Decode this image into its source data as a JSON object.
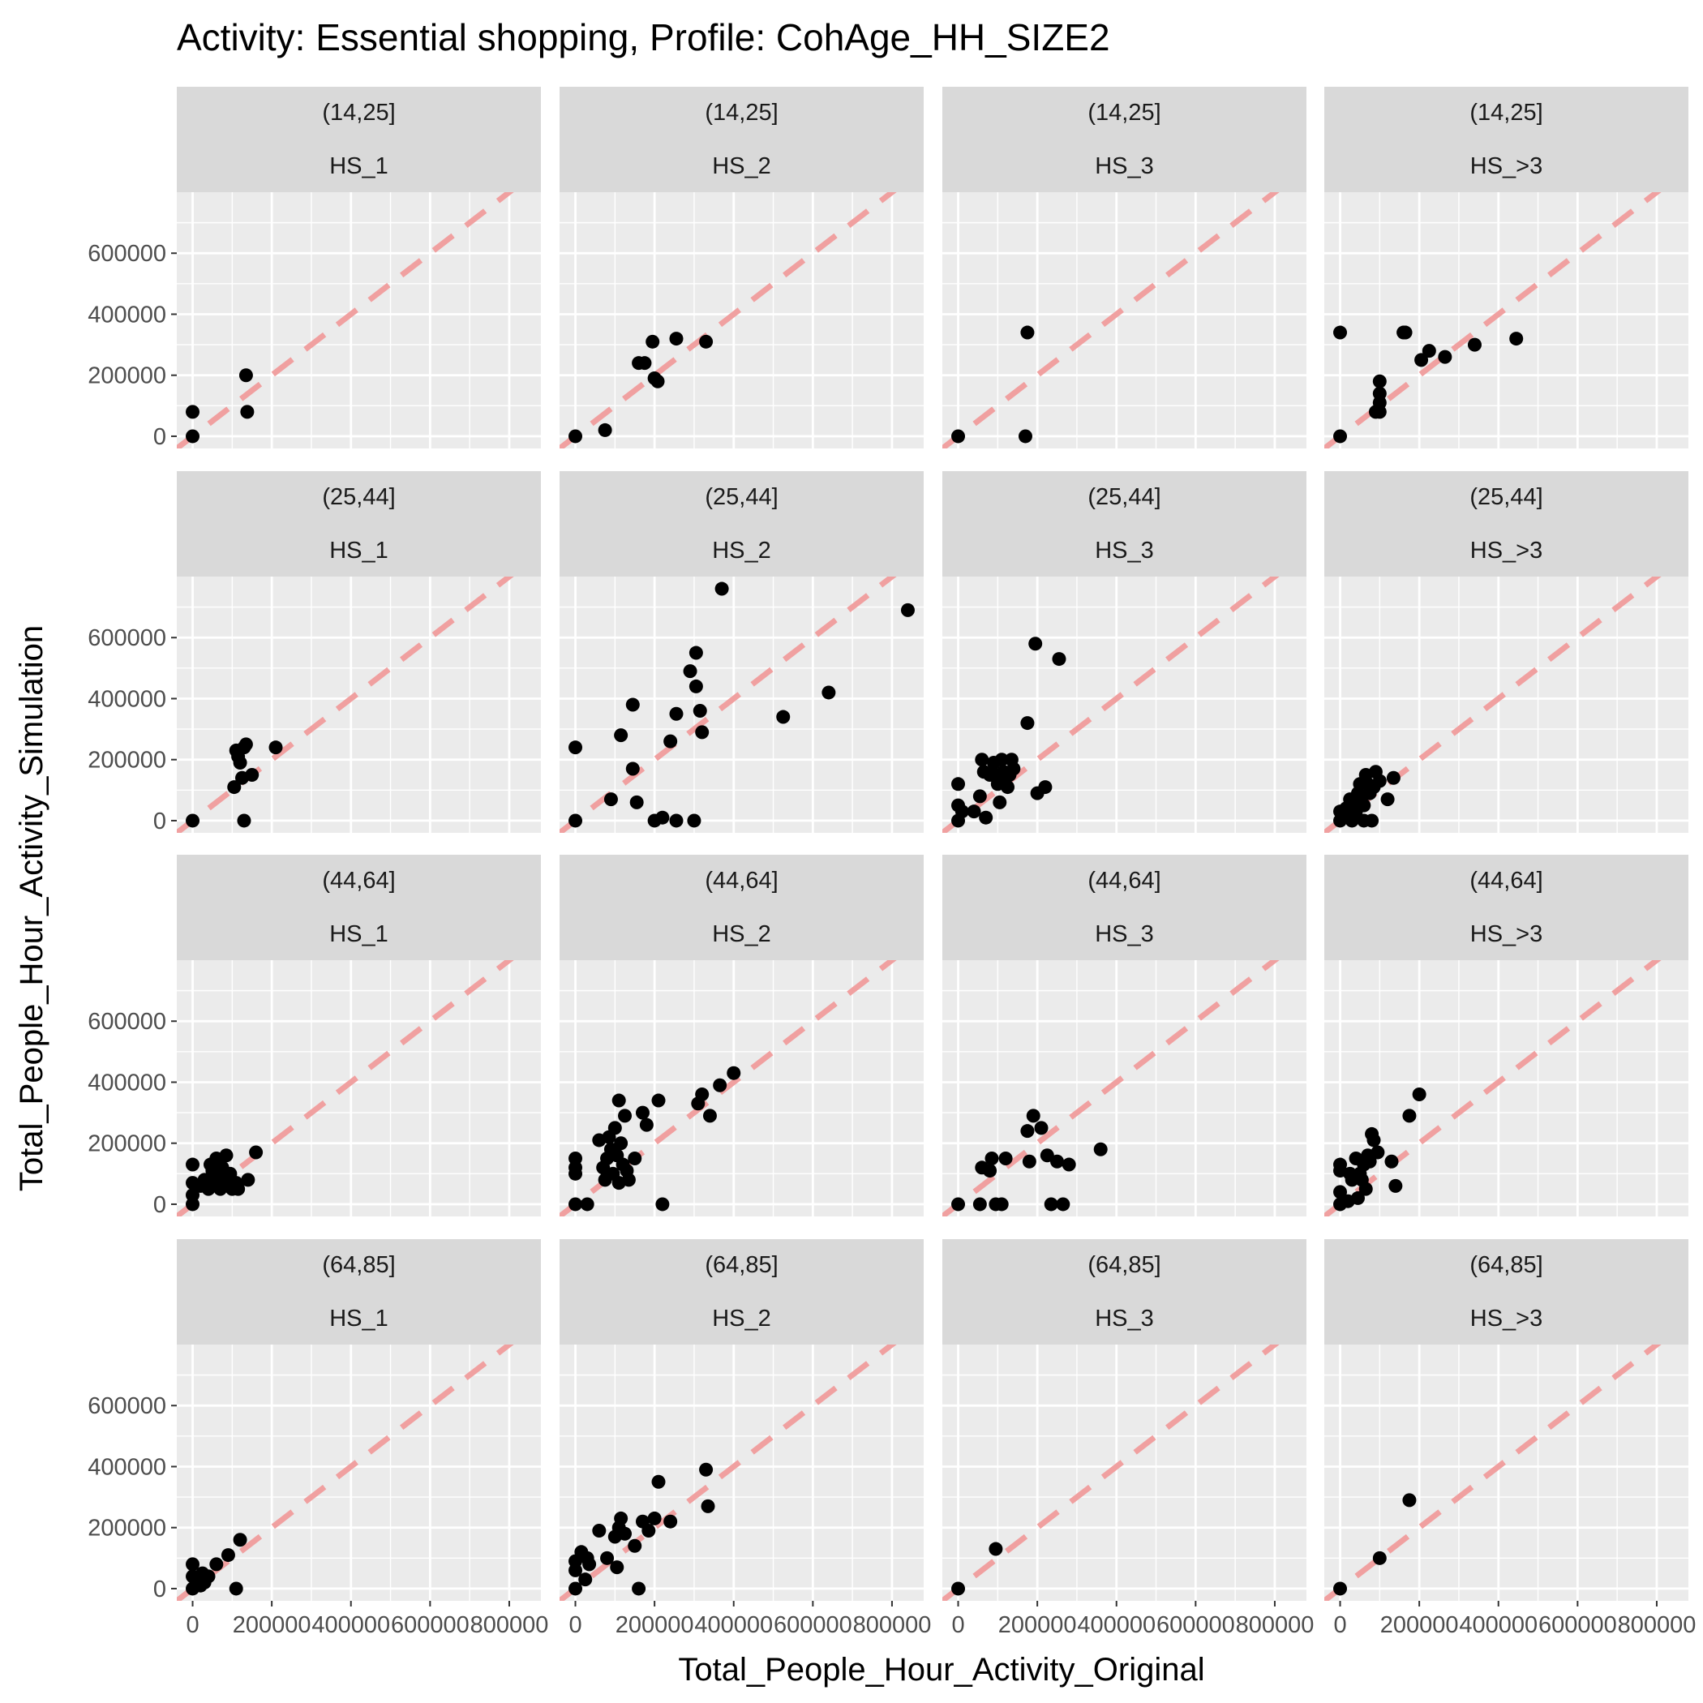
{
  "chart_data": {
    "type": "scatter",
    "title": "Activity: Essential shopping, Profile: CohAge_HH_SIZE2",
    "xlabel": "Total_People_Hour_Activity_Original",
    "ylabel": "Total_People_Hour_Activity_Simulation",
    "xlim": [
      -40000,
      880000
    ],
    "ylim": [
      -40000,
      800000
    ],
    "x_ticks": [
      0,
      200000,
      400000,
      600000,
      800000
    ],
    "x_tick_labels": [
      "0",
      "200000",
      "400000",
      "600000",
      "800000"
    ],
    "y_ticks": [
      0,
      200000,
      400000,
      600000
    ],
    "y_tick_labels": [
      "0",
      "200000",
      "400000",
      "600000"
    ],
    "grid": true,
    "reference_line": {
      "slope": 1,
      "intercept": 0,
      "style": "dashed",
      "color": "#f0a0a0"
    },
    "colors": {
      "panel_bg": "#ebebeb",
      "strip_bg": "#d9d9d9",
      "grid": "#ffffff",
      "points": "#000000",
      "tick_marks": "#333333"
    },
    "age_groups": [
      "(14,25]",
      "(25,44]",
      "(44,64]",
      "(64,85]"
    ],
    "hh_sizes": [
      "HS_1",
      "HS_2",
      "HS_3",
      "HS_>3"
    ],
    "panels": [
      {
        "row": 0,
        "col": 0,
        "points": [
          [
            0,
            80000
          ],
          [
            0,
            0
          ],
          [
            135000,
            200000
          ],
          [
            138000,
            80000
          ]
        ]
      },
      {
        "row": 0,
        "col": 1,
        "points": [
          [
            0,
            0
          ],
          [
            75000,
            20000
          ],
          [
            160000,
            240000
          ],
          [
            175000,
            240000
          ],
          [
            195000,
            310000
          ],
          [
            200000,
            190000
          ],
          [
            208000,
            180000
          ],
          [
            255000,
            320000
          ],
          [
            330000,
            310000
          ]
        ]
      },
      {
        "row": 0,
        "col": 2,
        "points": [
          [
            0,
            0
          ],
          [
            175000,
            340000
          ],
          [
            170000,
            0
          ]
        ]
      },
      {
        "row": 0,
        "col": 3,
        "points": [
          [
            0,
            340000
          ],
          [
            0,
            0
          ],
          [
            90000,
            80000
          ],
          [
            100000,
            180000
          ],
          [
            100000,
            140000
          ],
          [
            100000,
            110000
          ],
          [
            100000,
            80000
          ],
          [
            160000,
            340000
          ],
          [
            165000,
            340000
          ],
          [
            205000,
            250000
          ],
          [
            225000,
            280000
          ],
          [
            265000,
            260000
          ],
          [
            340000,
            300000
          ],
          [
            445000,
            320000
          ]
        ]
      },
      {
        "row": 1,
        "col": 0,
        "points": [
          [
            0,
            0
          ],
          [
            105000,
            110000
          ],
          [
            110000,
            230000
          ],
          [
            115000,
            210000
          ],
          [
            120000,
            190000
          ],
          [
            125000,
            140000
          ],
          [
            130000,
            240000
          ],
          [
            135000,
            250000
          ],
          [
            150000,
            150000
          ],
          [
            130000,
            0
          ],
          [
            210000,
            240000
          ]
        ]
      },
      {
        "row": 1,
        "col": 1,
        "points": [
          [
            0,
            240000
          ],
          [
            0,
            0
          ],
          [
            90000,
            70000
          ],
          [
            115000,
            280000
          ],
          [
            145000,
            380000
          ],
          [
            145000,
            170000
          ],
          [
            155000,
            60000
          ],
          [
            200000,
            0
          ],
          [
            220000,
            10000
          ],
          [
            240000,
            260000
          ],
          [
            255000,
            350000
          ],
          [
            255000,
            0
          ],
          [
            290000,
            490000
          ],
          [
            300000,
            0
          ],
          [
            305000,
            550000
          ],
          [
            305000,
            440000
          ],
          [
            315000,
            360000
          ],
          [
            320000,
            290000
          ],
          [
            370000,
            760000
          ],
          [
            525000,
            340000
          ],
          [
            640000,
            420000
          ],
          [
            840000,
            690000
          ]
        ]
      },
      {
        "row": 1,
        "col": 2,
        "points": [
          [
            0,
            120000
          ],
          [
            0,
            50000
          ],
          [
            0,
            0
          ],
          [
            10000,
            30000
          ],
          [
            40000,
            30000
          ],
          [
            55000,
            80000
          ],
          [
            60000,
            200000
          ],
          [
            65000,
            160000
          ],
          [
            70000,
            10000
          ],
          [
            80000,
            150000
          ],
          [
            90000,
            190000
          ],
          [
            95000,
            150000
          ],
          [
            100000,
            120000
          ],
          [
            105000,
            60000
          ],
          [
            110000,
            200000
          ],
          [
            115000,
            160000
          ],
          [
            120000,
            150000
          ],
          [
            125000,
            110000
          ],
          [
            130000,
            150000
          ],
          [
            135000,
            200000
          ],
          [
            140000,
            170000
          ],
          [
            175000,
            320000
          ],
          [
            195000,
            580000
          ],
          [
            200000,
            90000
          ],
          [
            220000,
            110000
          ],
          [
            255000,
            530000
          ]
        ]
      },
      {
        "row": 1,
        "col": 3,
        "points": [
          [
            0,
            30000
          ],
          [
            0,
            0
          ],
          [
            10000,
            10000
          ],
          [
            15000,
            40000
          ],
          [
            20000,
            20000
          ],
          [
            25000,
            70000
          ],
          [
            30000,
            0
          ],
          [
            35000,
            60000
          ],
          [
            40000,
            30000
          ],
          [
            45000,
            90000
          ],
          [
            50000,
            120000
          ],
          [
            55000,
            80000
          ],
          [
            60000,
            50000
          ],
          [
            60000,
            0
          ],
          [
            65000,
            150000
          ],
          [
            70000,
            120000
          ],
          [
            75000,
            90000
          ],
          [
            80000,
            0
          ],
          [
            85000,
            110000
          ],
          [
            90000,
            160000
          ],
          [
            100000,
            130000
          ],
          [
            120000,
            70000
          ],
          [
            135000,
            140000
          ]
        ]
      },
      {
        "row": 2,
        "col": 0,
        "points": [
          [
            0,
            130000
          ],
          [
            0,
            70000
          ],
          [
            0,
            30000
          ],
          [
            0,
            0
          ],
          [
            20000,
            60000
          ],
          [
            30000,
            80000
          ],
          [
            40000,
            50000
          ],
          [
            45000,
            130000
          ],
          [
            50000,
            110000
          ],
          [
            55000,
            70000
          ],
          [
            60000,
            150000
          ],
          [
            65000,
            90000
          ],
          [
            70000,
            50000
          ],
          [
            75000,
            120000
          ],
          [
            80000,
            80000
          ],
          [
            85000,
            160000
          ],
          [
            90000,
            60000
          ],
          [
            95000,
            100000
          ],
          [
            100000,
            50000
          ],
          [
            110000,
            70000
          ],
          [
            115000,
            50000
          ],
          [
            140000,
            80000
          ],
          [
            160000,
            170000
          ]
        ]
      },
      {
        "row": 2,
        "col": 1,
        "points": [
          [
            0,
            150000
          ],
          [
            0,
            120000
          ],
          [
            0,
            100000
          ],
          [
            0,
            0
          ],
          [
            30000,
            0
          ],
          [
            60000,
            210000
          ],
          [
            70000,
            120000
          ],
          [
            75000,
            80000
          ],
          [
            80000,
            150000
          ],
          [
            85000,
            220000
          ],
          [
            90000,
            180000
          ],
          [
            95000,
            100000
          ],
          [
            100000,
            250000
          ],
          [
            105000,
            160000
          ],
          [
            110000,
            70000
          ],
          [
            110000,
            340000
          ],
          [
            115000,
            200000
          ],
          [
            120000,
            130000
          ],
          [
            125000,
            290000
          ],
          [
            130000,
            110000
          ],
          [
            135000,
            80000
          ],
          [
            150000,
            150000
          ],
          [
            170000,
            300000
          ],
          [
            180000,
            260000
          ],
          [
            210000,
            340000
          ],
          [
            220000,
            0
          ],
          [
            310000,
            330000
          ],
          [
            320000,
            360000
          ],
          [
            340000,
            290000
          ],
          [
            365000,
            390000
          ],
          [
            400000,
            430000
          ]
        ]
      },
      {
        "row": 2,
        "col": 2,
        "points": [
          [
            0,
            0
          ],
          [
            55000,
            0
          ],
          [
            60000,
            120000
          ],
          [
            80000,
            110000
          ],
          [
            85000,
            150000
          ],
          [
            95000,
            0
          ],
          [
            110000,
            0
          ],
          [
            120000,
            150000
          ],
          [
            175000,
            240000
          ],
          [
            180000,
            140000
          ],
          [
            190000,
            290000
          ],
          [
            210000,
            250000
          ],
          [
            225000,
            160000
          ],
          [
            235000,
            0
          ],
          [
            250000,
            140000
          ],
          [
            265000,
            0
          ],
          [
            280000,
            130000
          ],
          [
            360000,
            180000
          ]
        ]
      },
      {
        "row": 2,
        "col": 3,
        "points": [
          [
            0,
            130000
          ],
          [
            0,
            110000
          ],
          [
            0,
            40000
          ],
          [
            0,
            0
          ],
          [
            20000,
            10000
          ],
          [
            25000,
            100000
          ],
          [
            30000,
            80000
          ],
          [
            40000,
            150000
          ],
          [
            45000,
            20000
          ],
          [
            50000,
            100000
          ],
          [
            55000,
            80000
          ],
          [
            60000,
            130000
          ],
          [
            65000,
            50000
          ],
          [
            70000,
            160000
          ],
          [
            75000,
            140000
          ],
          [
            80000,
            230000
          ],
          [
            85000,
            210000
          ],
          [
            95000,
            170000
          ],
          [
            130000,
            140000
          ],
          [
            140000,
            60000
          ],
          [
            175000,
            290000
          ],
          [
            200000,
            360000
          ]
        ]
      },
      {
        "row": 3,
        "col": 0,
        "points": [
          [
            0,
            80000
          ],
          [
            0,
            40000
          ],
          [
            0,
            0
          ],
          [
            10000,
            30000
          ],
          [
            20000,
            10000
          ],
          [
            25000,
            50000
          ],
          [
            30000,
            20000
          ],
          [
            40000,
            40000
          ],
          [
            60000,
            80000
          ],
          [
            90000,
            110000
          ],
          [
            110000,
            0
          ],
          [
            120000,
            160000
          ]
        ]
      },
      {
        "row": 3,
        "col": 1,
        "points": [
          [
            0,
            90000
          ],
          [
            0,
            60000
          ],
          [
            0,
            0
          ],
          [
            15000,
            120000
          ],
          [
            25000,
            30000
          ],
          [
            30000,
            100000
          ],
          [
            35000,
            80000
          ],
          [
            60000,
            190000
          ],
          [
            80000,
            100000
          ],
          [
            100000,
            170000
          ],
          [
            105000,
            70000
          ],
          [
            110000,
            200000
          ],
          [
            115000,
            230000
          ],
          [
            125000,
            180000
          ],
          [
            150000,
            140000
          ],
          [
            160000,
            0
          ],
          [
            170000,
            220000
          ],
          [
            185000,
            190000
          ],
          [
            200000,
            230000
          ],
          [
            210000,
            350000
          ],
          [
            240000,
            220000
          ],
          [
            330000,
            390000
          ],
          [
            335000,
            270000
          ]
        ]
      },
      {
        "row": 3,
        "col": 2,
        "points": [
          [
            0,
            0
          ],
          [
            95000,
            130000
          ]
        ]
      },
      {
        "row": 3,
        "col": 3,
        "points": [
          [
            0,
            0
          ],
          [
            100000,
            100000
          ],
          [
            175000,
            290000
          ]
        ]
      }
    ]
  }
}
